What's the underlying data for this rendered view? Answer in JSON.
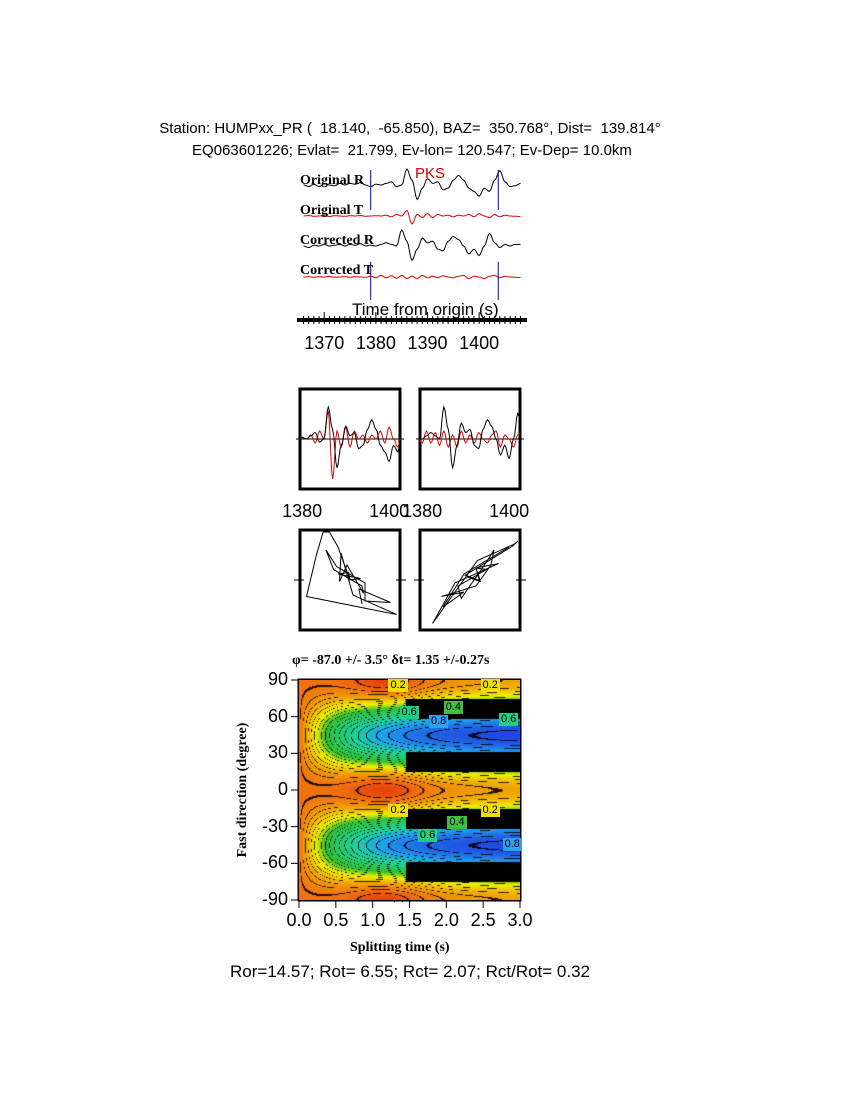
{
  "header": {
    "line1": "Station: HUMPxx_PR (  18.140,  -65.850), BAZ=  350.768°, Dist=  139.814°",
    "line2": "EQ063601226; Evlat=  21.799, Ev-lon= 120.547; Ev-Dep= 10.0km"
  },
  "footer": "Ror=14.57; Rot= 6.55; Rct= 2.07; Rct/Rot= 0.32",
  "chart_data": [
    {
      "type": "line",
      "title": "",
      "xlabel": "Time from origin (s)",
      "xlim": [
        1365.5,
        1408.3
      ],
      "xticks": [
        "1370",
        "1380",
        "1390",
        "1400"
      ],
      "phase_label": "PKS",
      "window_markers_s": [
        1379,
        1403.7
      ],
      "t_start": 1366,
      "sample_interval_s": 1,
      "series": [
        {
          "name": "Original R",
          "color": "#000000",
          "values": [
            0,
            -0.1,
            0.05,
            -0.1,
            0.1,
            0,
            -0.05,
            0.1,
            0,
            0.1,
            0.05,
            0.15,
            0,
            -0.1,
            0.05,
            0,
            0.1,
            0.2,
            -0.1,
            0,
            1.0,
            0.3,
            -0.9,
            -0.2,
            0.4,
            0.1,
            0.2,
            -0.3,
            -0.2,
            0.3,
            0.6,
            0.3,
            -0.2,
            -0.4,
            -0.7,
            -0.2,
            -0.4,
            0.3,
            0.9,
            0.2,
            -0.1,
            -0.05,
            0.1
          ]
        },
        {
          "name": "Original T",
          "color": "#dd0000",
          "values": [
            0,
            0.03,
            -0.02,
            0,
            0.03,
            -0.03,
            0.02,
            0,
            -0.02,
            0.02,
            0,
            0.03,
            -0.02,
            0,
            0.02,
            0,
            0.05,
            -0.05,
            0.1,
            0,
            0.35,
            -0.5,
            0.1,
            -0.1,
            0.15,
            -0.1,
            0.1,
            0,
            0.05,
            -0.05,
            0.05,
            0,
            0.1,
            -0.05,
            0.15,
            0,
            -0.1,
            0.1,
            -0.05,
            0.05,
            0,
            -0.02,
            -0.03
          ]
        },
        {
          "name": "Corrected R",
          "color": "#000000",
          "values": [
            0,
            -0.1,
            0.05,
            0,
            0.1,
            0,
            0.05,
            0.1,
            0,
            0.1,
            0.05,
            0.15,
            0,
            0.05,
            0,
            0.1,
            0.2,
            0.1,
            0,
            1.0,
            0.3,
            -0.9,
            -0.2,
            0.5,
            0.2,
            0.3,
            -0.2,
            -0.3,
            0.3,
            0.6,
            0.4,
            0,
            -0.5,
            -0.2,
            -0.6,
            0,
            0.8,
            0.2,
            -0.1,
            0.1,
            0,
            0.1,
            0.1
          ]
        },
        {
          "name": "Corrected T",
          "color": "#dd0000",
          "values": [
            0,
            0.02,
            -0.02,
            0.02,
            0,
            0.03,
            -0.02,
            0,
            0.02,
            -0.02,
            0.02,
            0,
            -0.02,
            0.05,
            -0.05,
            0.1,
            -0.05,
            0.08,
            -0.08,
            0.1,
            -0.1,
            0.05,
            -0.1,
            0.1,
            -0.05,
            0.05,
            -0.05,
            0.08,
            0,
            -0.05,
            0.05,
            0.1,
            -0.1,
            0.05,
            0,
            -0.1,
            0.05,
            0.1,
            -0.05,
            0.05,
            0,
            -0.02,
            -0.03
          ]
        }
      ]
    },
    {
      "type": "line",
      "title": "",
      "panels": [
        "original",
        "corrected"
      ],
      "xticks": [
        "1380",
        "1400"
      ],
      "xlim": [
        1379.5,
        1402.5
      ]
    },
    {
      "type": "scatter",
      "title": "",
      "panels": [
        "original particle motion",
        "corrected particle motion"
      ]
    },
    {
      "type": "heatmap",
      "title": "φ= -87.0 +/- 3.5° δt= 1.35 +/-0.27s",
      "xlabel": "Splitting time (s)",
      "ylabel": "Fast direction (degree)",
      "xlim": [
        0,
        3.0
      ],
      "ylim": [
        -90,
        90
      ],
      "xticks": [
        "0.0",
        "0.5",
        "1.0",
        "1.5",
        "2.0",
        "2.5",
        "3.0"
      ],
      "yticks": [
        "90",
        "60",
        "30",
        "0",
        "-30",
        "-60",
        "-90"
      ],
      "best_fit": {
        "phi": -87.0,
        "dt": 1.35
      },
      "contour_labels": [
        {
          "text": "0.2",
          "dt": 1.35,
          "phi": 85
        },
        {
          "text": "0.6",
          "dt": 1.5,
          "phi": 63
        },
        {
          "text": "0.4",
          "dt": 2.1,
          "phi": 67
        },
        {
          "text": "0.8",
          "dt": 1.9,
          "phi": 56
        },
        {
          "text": "0.2",
          "dt": 2.6,
          "phi": 85
        },
        {
          "text": "0.6",
          "dt": 2.85,
          "phi": 57
        },
        {
          "text": "0.2",
          "dt": 1.35,
          "phi": -17
        },
        {
          "text": "0.6",
          "dt": 1.75,
          "phi": -38
        },
        {
          "text": "0.4",
          "dt": 2.15,
          "phi": -27
        },
        {
          "text": "0.2",
          "dt": 2.6,
          "phi": -17
        },
        {
          "text": "0.8",
          "dt": 2.9,
          "phi": -45
        }
      ],
      "colors": {
        "low": "#e02008",
        "mid": "#f0e000",
        "high": "#2040e0",
        "saturated": "#000000"
      }
    }
  ]
}
